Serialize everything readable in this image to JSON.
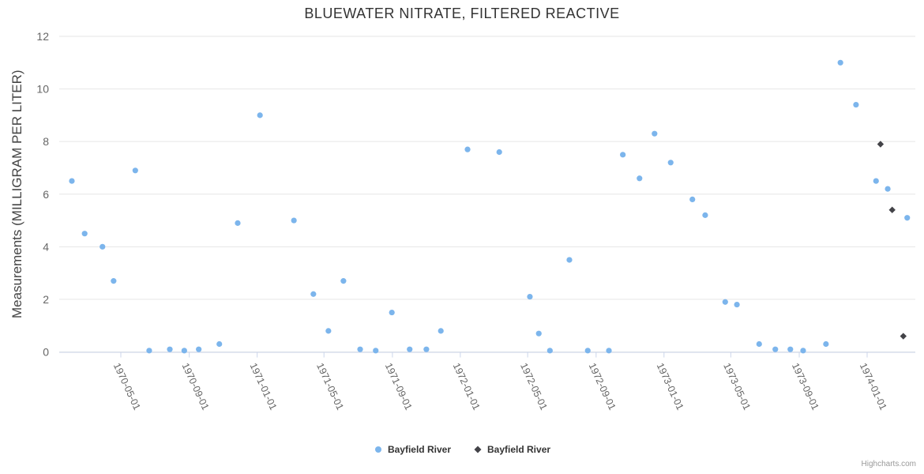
{
  "chart": {
    "title": "BLUEWATER NITRATE, FILTERED REACTIVE",
    "credits": "Highcharts.com"
  },
  "chart_data": {
    "type": "scatter",
    "title": "BLUEWATER NITRATE, FILTERED REACTIVE",
    "xlabel": "",
    "ylabel": "Measurements (MILLIGRAM PER LITER)",
    "ylim": [
      0,
      12
    ],
    "y_ticks": [
      0,
      2,
      4,
      6,
      8,
      10,
      12
    ],
    "x_ticks": [
      "1970-05-01",
      "1970-09-01",
      "1971-01-01",
      "1971-05-01",
      "1971-09-01",
      "1972-01-01",
      "1972-05-01",
      "1972-09-01",
      "1973-01-01",
      "1973-05-01",
      "1973-09-01",
      "1974-01-01"
    ],
    "grid": true,
    "legend_position": "bottom-center",
    "series": [
      {
        "name": "Bayfield River",
        "marker": "circle",
        "color": "#7cb5ec",
        "data": [
          [
            "1970-02-02",
            6.5
          ],
          [
            "1970-02-25",
            4.5
          ],
          [
            "1970-03-29",
            4.0
          ],
          [
            "1970-04-18",
            2.7
          ],
          [
            "1970-05-27",
            6.9
          ],
          [
            "1970-06-21",
            0.05
          ],
          [
            "1970-07-28",
            0.1
          ],
          [
            "1970-08-23",
            0.05
          ],
          [
            "1970-09-18",
            0.1
          ],
          [
            "1970-10-25",
            0.3
          ],
          [
            "1970-11-27",
            4.9
          ],
          [
            "1971-01-06",
            9.0
          ],
          [
            "1971-03-08",
            5.0
          ],
          [
            "1971-04-12",
            2.2
          ],
          [
            "1971-05-09",
            0.8
          ],
          [
            "1971-06-05",
            2.7
          ],
          [
            "1971-07-05",
            0.1
          ],
          [
            "1971-08-02",
            0.05
          ],
          [
            "1971-08-31",
            1.5
          ],
          [
            "1971-10-02",
            0.1
          ],
          [
            "1971-11-01",
            0.1
          ],
          [
            "1971-11-27",
            0.8
          ],
          [
            "1972-01-14",
            7.7
          ],
          [
            "1972-03-11",
            7.6
          ],
          [
            "1972-05-05",
            2.1
          ],
          [
            "1972-05-21",
            0.7
          ],
          [
            "1972-06-10",
            0.05
          ],
          [
            "1972-07-15",
            3.5
          ],
          [
            "1972-08-17",
            0.05
          ],
          [
            "1972-09-24",
            0.05
          ],
          [
            "1972-10-19",
            7.5
          ],
          [
            "1972-11-18",
            6.6
          ],
          [
            "1972-12-15",
            8.3
          ],
          [
            "1973-01-13",
            7.2
          ],
          [
            "1973-02-21",
            5.8
          ],
          [
            "1973-03-16",
            5.2
          ],
          [
            "1973-04-21",
            1.9
          ],
          [
            "1973-05-12",
            1.8
          ],
          [
            "1973-06-21",
            0.3
          ],
          [
            "1973-07-20",
            0.1
          ],
          [
            "1973-08-16",
            0.1
          ],
          [
            "1973-09-08",
            0.05
          ],
          [
            "1973-10-19",
            0.3
          ],
          [
            "1973-11-14",
            11.0
          ],
          [
            "1973-12-12",
            9.4
          ],
          [
            "1974-01-17",
            6.5
          ],
          [
            "1974-02-07",
            6.2
          ],
          [
            "1974-03-14",
            5.1
          ]
        ]
      },
      {
        "name": "Bayfield River",
        "marker": "diamond",
        "color": "#434348",
        "data": [
          [
            "1974-01-25",
            7.9
          ],
          [
            "1974-02-15",
            5.4
          ],
          [
            "1974-03-07",
            0.6
          ]
        ]
      }
    ]
  },
  "colors": {
    "background": "#ffffff",
    "grid": "#e6e6e6",
    "axis_line": "#ccd6eb",
    "tick_label": "#666666",
    "axis_title": "#444444",
    "title": "#333333",
    "legend_text": "#333333",
    "credits": "#999999"
  }
}
